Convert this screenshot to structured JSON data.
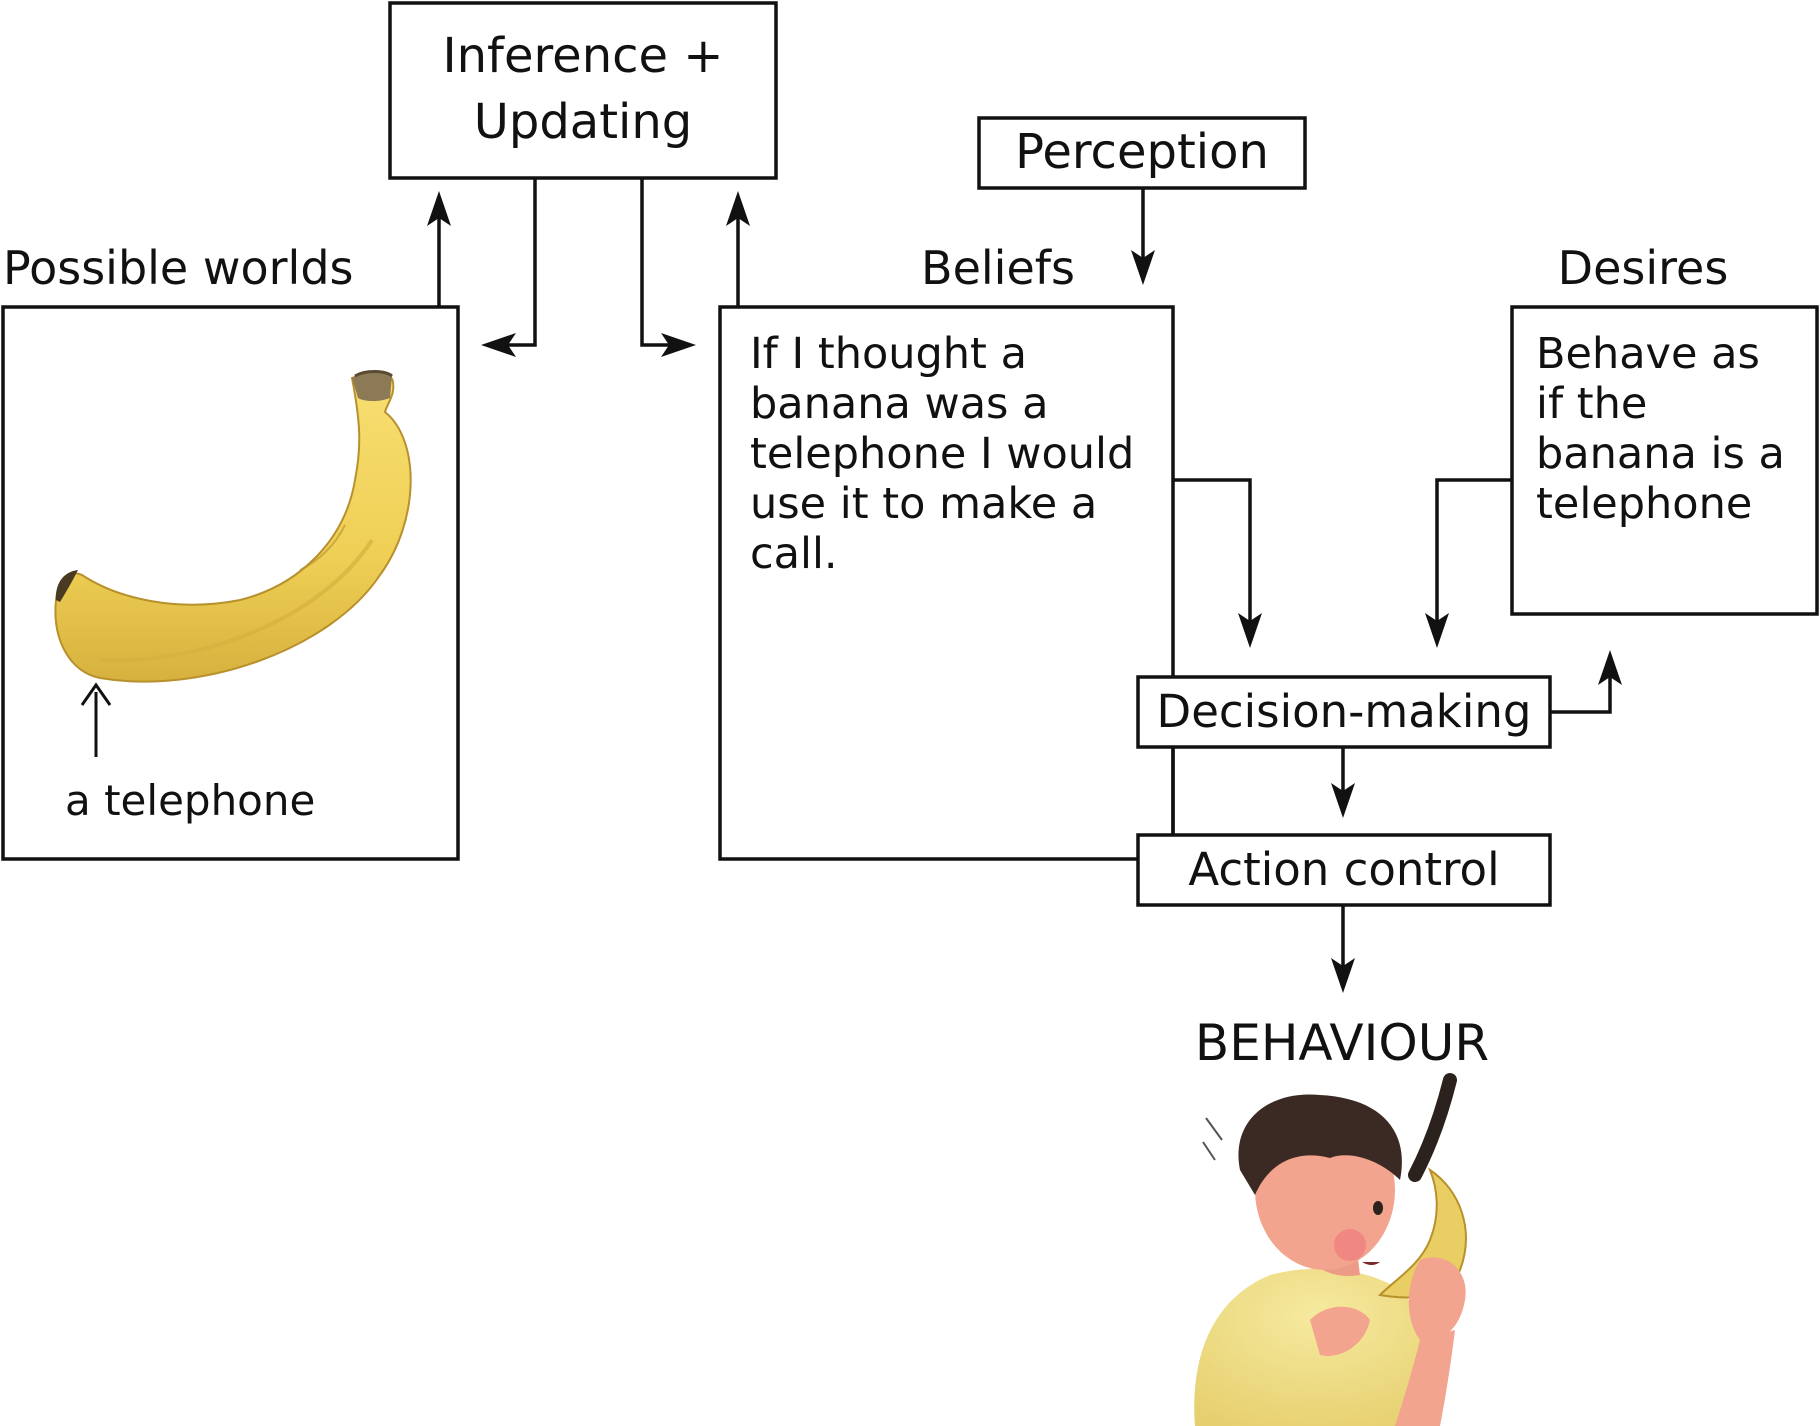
{
  "diagram": {
    "inference_box": {
      "line1": "Inference +",
      "line2": "Updating"
    },
    "perception_box": {
      "label": "Perception"
    },
    "possible_worlds": {
      "title": "Possible worlds",
      "caption": "a telephone"
    },
    "beliefs": {
      "title": "Beliefs",
      "text_lines": [
        "If I thought a",
        "banana was a",
        "telephone I would",
        "use it to make a",
        "call."
      ]
    },
    "desires": {
      "title": "Desires",
      "text_lines": [
        "Behave as",
        "if the",
        "banana is a",
        "telephone"
      ]
    },
    "decision_box": {
      "label": "Decision-making"
    },
    "action_box": {
      "label": "Action control"
    },
    "behaviour": {
      "label": "BEHAVIOUR"
    }
  },
  "colors": {
    "stroke": "#111111",
    "banana_yellow": "#f2d35a",
    "banana_shade": "#c9a53a",
    "skin": "#f2a48e",
    "hair": "#3b2a24",
    "shirt": "#f0e08a"
  }
}
